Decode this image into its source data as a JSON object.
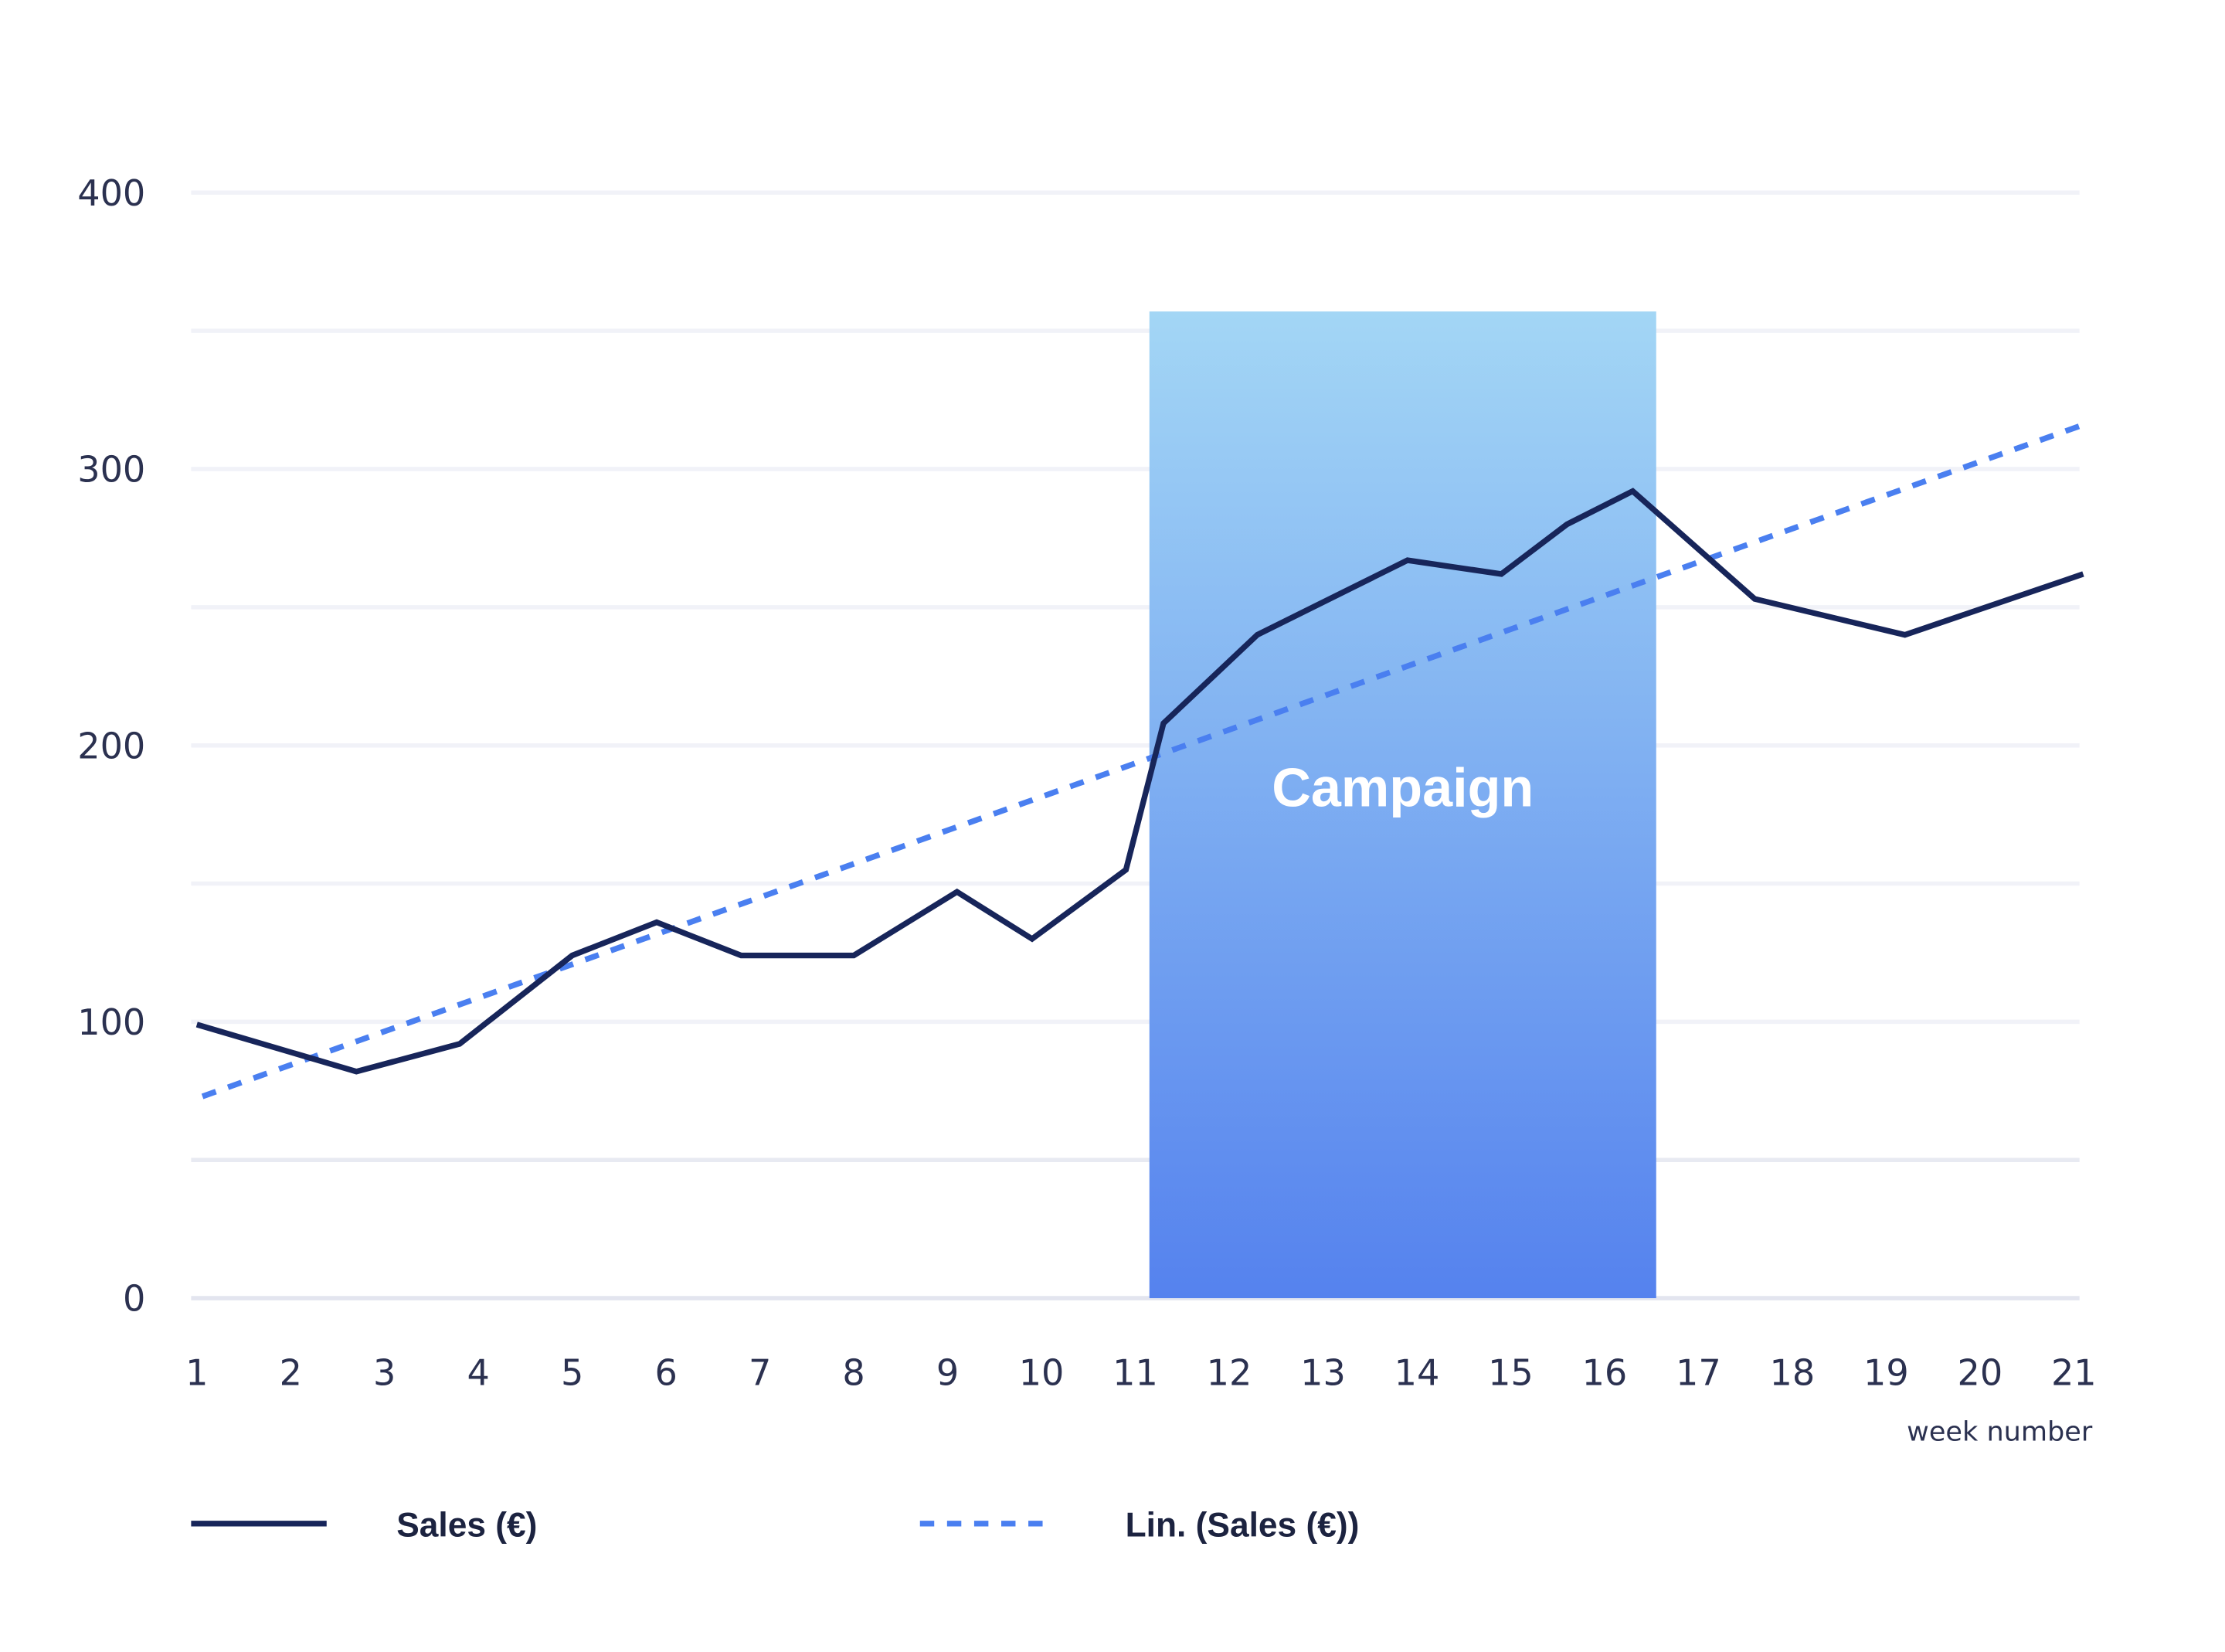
{
  "chart_data": {
    "type": "line",
    "title": "",
    "xlabel": "week number",
    "ylabel": "",
    "xlim": [
      1,
      21
    ],
    "ylim": [
      0,
      400
    ],
    "x_ticks": [
      "1",
      "2",
      "3",
      "4",
      "5",
      "6",
      "7",
      "8",
      "9",
      "10",
      "11",
      "12",
      "13",
      "14",
      "15",
      "16",
      "17",
      "18",
      "19",
      "20",
      "21"
    ],
    "y_ticks": [
      "0",
      "100",
      "200",
      "300",
      "400"
    ],
    "y_gridlines": [
      0,
      50,
      100,
      150,
      200,
      250,
      300,
      350,
      400
    ],
    "grid": true,
    "legend_position": "bottom",
    "series": [
      {
        "name": "Sales (€)",
        "style": "solid",
        "color": "#17255a",
        "x": [
          1.0,
          2.7,
          3.8,
          5.0,
          5.9,
          6.8,
          8.0,
          9.1,
          9.9,
          10.9,
          11.3,
          12.3,
          13.9,
          14.9,
          15.6,
          16.3,
          17.6,
          19.2,
          21.1
        ],
        "y": [
          99,
          82,
          92,
          124,
          136,
          124,
          124,
          147,
          130,
          155,
          208,
          240,
          267,
          262,
          280,
          292,
          253,
          240,
          262
        ]
      },
      {
        "name": "Lin. (Sales (€))",
        "style": "dashed",
        "color": "#4a7ff0",
        "x": [
          1.06,
          21.1
        ],
        "y": [
          73,
          316
        ]
      }
    ],
    "annotations": [
      {
        "label": "Campaign",
        "x_start": 11.15,
        "x_end": 16.55,
        "y_top": 357,
        "gradient_top": "#a3d6f5",
        "gradient_bottom": "#5582ee"
      }
    ]
  }
}
